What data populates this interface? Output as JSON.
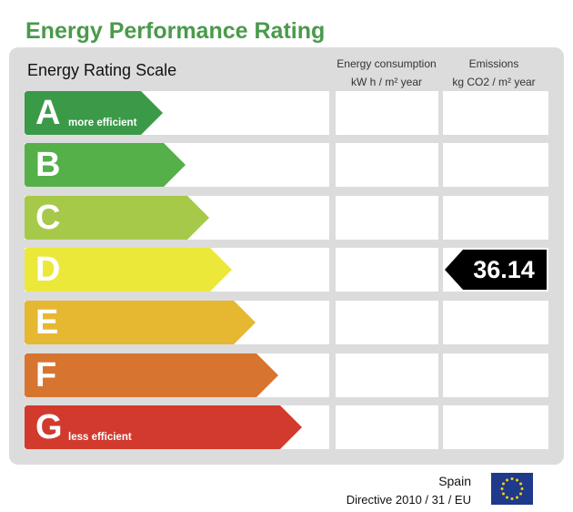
{
  "title": "Energy Performance Rating",
  "scale_label": "Energy Rating Scale",
  "columns": {
    "consumption_line1": "Energy consumption",
    "consumption_line2": "kW h / m² year",
    "emissions_line1": "Emissions",
    "emissions_line2": "kg CO2 / m² year"
  },
  "ratings": [
    {
      "letter": "A",
      "label": "more efficient",
      "color": "#3a9a48"
    },
    {
      "letter": "B",
      "label": "",
      "color": "#55b04a"
    },
    {
      "letter": "C",
      "label": "",
      "color": "#a6c94a"
    },
    {
      "letter": "D",
      "label": "",
      "color": "#ece83a"
    },
    {
      "letter": "E",
      "label": "",
      "color": "#e6b730"
    },
    {
      "letter": "F",
      "label": "",
      "color": "#d77430"
    },
    {
      "letter": "G",
      "label": "less efficient",
      "color": "#d23a2e"
    }
  ],
  "emissions": {
    "value": "36.14",
    "rating": "D"
  },
  "footer": {
    "country": "Spain",
    "directive": "Directive 2010 / 31 / EU"
  }
}
